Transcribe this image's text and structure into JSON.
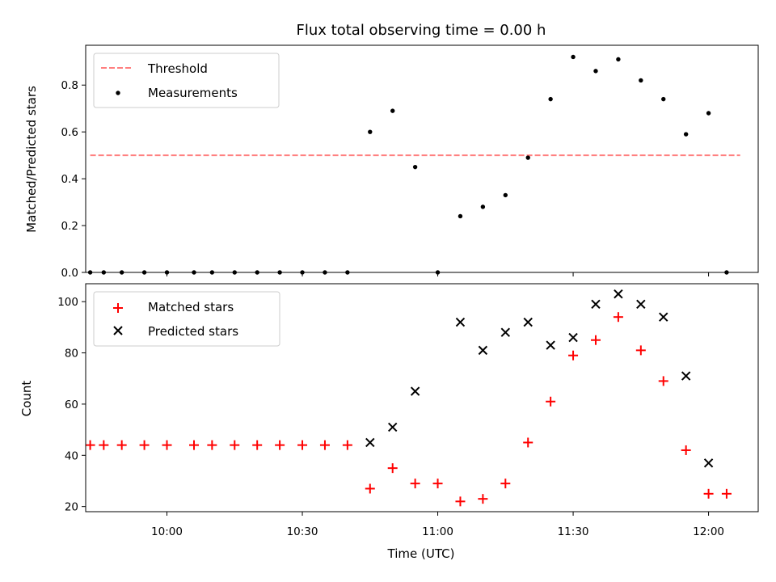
{
  "chart_data": [
    {
      "type": "scatter",
      "title": "Flux total observing time = 0.00 h",
      "xlabel": "",
      "ylabel": "Matched/Predicted stars",
      "xlim": [
        "09:42",
        "12:11"
      ],
      "ylim": [
        0,
        0.97
      ],
      "yticks": [
        0.0,
        0.2,
        0.4,
        0.6,
        0.8
      ],
      "ytick_labels": [
        "0.0",
        "0.2",
        "0.4",
        "0.6",
        "0.8"
      ],
      "grid": false,
      "legend_position": "top-left",
      "series": [
        {
          "name": "Threshold",
          "kind": "dashed-line",
          "color": "#ff7f7f",
          "points": [
            [
              "09:43",
              0.5
            ],
            [
              "12:07",
              0.5
            ]
          ]
        },
        {
          "name": "Measurements",
          "kind": "dot",
          "color": "#000000",
          "points": [
            [
              "09:43",
              0.0
            ],
            [
              "09:46",
              0.0
            ],
            [
              "09:50",
              0.0
            ],
            [
              "09:55",
              0.0
            ],
            [
              "10:00",
              0.0
            ],
            [
              "10:06",
              0.0
            ],
            [
              "10:10",
              0.0
            ],
            [
              "10:15",
              0.0
            ],
            [
              "10:20",
              0.0
            ],
            [
              "10:25",
              0.0
            ],
            [
              "10:30",
              0.0
            ],
            [
              "10:35",
              0.0
            ],
            [
              "10:40",
              0.0
            ],
            [
              "10:45",
              0.6
            ],
            [
              "10:50",
              0.69
            ],
            [
              "10:55",
              0.45
            ],
            [
              "11:00",
              0.0
            ],
            [
              "11:05",
              0.24
            ],
            [
              "11:10",
              0.28
            ],
            [
              "11:15",
              0.33
            ],
            [
              "11:20",
              0.49
            ],
            [
              "11:25",
              0.74
            ],
            [
              "11:30",
              0.92
            ],
            [
              "11:35",
              0.86
            ],
            [
              "11:40",
              0.91
            ],
            [
              "11:45",
              0.82
            ],
            [
              "11:50",
              0.74
            ],
            [
              "11:55",
              0.59
            ],
            [
              "12:00",
              0.68
            ],
            [
              "12:04",
              0.0
            ]
          ]
        }
      ]
    },
    {
      "type": "scatter",
      "title": "",
      "xlabel": "Time (UTC)",
      "ylabel": "Count",
      "xlim": [
        "09:42",
        "12:11"
      ],
      "ylim": [
        18,
        107
      ],
      "yticks": [
        20,
        40,
        60,
        80,
        100
      ],
      "ytick_labels": [
        "20",
        "40",
        "60",
        "80",
        "100"
      ],
      "xticks": [
        "10:00",
        "10:30",
        "11:00",
        "11:30",
        "12:00"
      ],
      "xtick_labels": [
        "10:00",
        "10:30",
        "11:00",
        "11:30",
        "12:00"
      ],
      "grid": false,
      "legend_position": "top-left",
      "series": [
        {
          "name": "Matched stars",
          "kind": "plus",
          "color": "#ff0000",
          "points": [
            [
              "09:43",
              44
            ],
            [
              "09:46",
              44
            ],
            [
              "09:50",
              44
            ],
            [
              "09:55",
              44
            ],
            [
              "10:00",
              44
            ],
            [
              "10:06",
              44
            ],
            [
              "10:10",
              44
            ],
            [
              "10:15",
              44
            ],
            [
              "10:20",
              44
            ],
            [
              "10:25",
              44
            ],
            [
              "10:30",
              44
            ],
            [
              "10:35",
              44
            ],
            [
              "10:40",
              44
            ],
            [
              "10:45",
              27
            ],
            [
              "10:50",
              35
            ],
            [
              "10:55",
              29
            ],
            [
              "11:00",
              29
            ],
            [
              "11:05",
              22
            ],
            [
              "11:10",
              23
            ],
            [
              "11:15",
              29
            ],
            [
              "11:20",
              45
            ],
            [
              "11:25",
              61
            ],
            [
              "11:30",
              79
            ],
            [
              "11:35",
              85
            ],
            [
              "11:40",
              94
            ],
            [
              "11:45",
              81
            ],
            [
              "11:50",
              69
            ],
            [
              "11:55",
              42
            ],
            [
              "12:00",
              25
            ],
            [
              "12:04",
              25
            ]
          ]
        },
        {
          "name": "Predicted stars",
          "kind": "x",
          "color": "#000000",
          "points": [
            [
              "10:45",
              45
            ],
            [
              "10:50",
              51
            ],
            [
              "10:55",
              65
            ],
            [
              "11:05",
              92
            ],
            [
              "11:10",
              81
            ],
            [
              "11:15",
              88
            ],
            [
              "11:20",
              92
            ],
            [
              "11:25",
              83
            ],
            [
              "11:30",
              86
            ],
            [
              "11:35",
              99
            ],
            [
              "11:40",
              103
            ],
            [
              "11:45",
              99
            ],
            [
              "11:50",
              94
            ],
            [
              "11:55",
              71
            ],
            [
              "12:00",
              37
            ]
          ]
        }
      ]
    }
  ]
}
